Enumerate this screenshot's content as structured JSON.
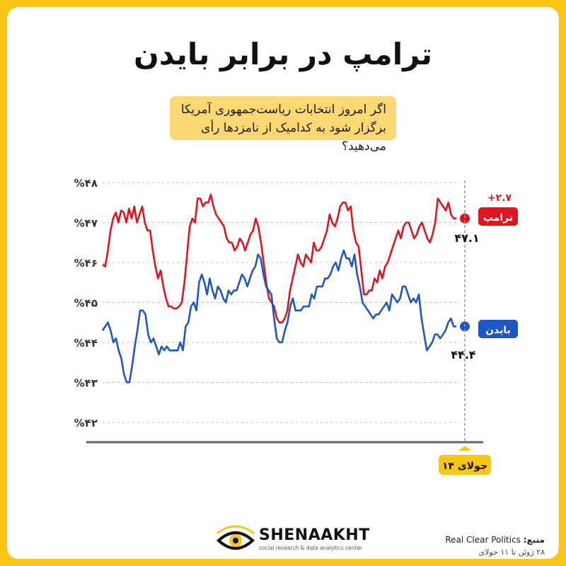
{
  "title": "ترامپ در برابر بایدن",
  "question": "اگر امروز انتخابات ریاست‌جمهوری آمریکا برگزار شود به کدامیک از نامزدها رأی می‌دهید؟",
  "brand": {
    "name": "SHENAAKHT",
    "tagline": "social research & data analytics center"
  },
  "source": {
    "label": "منبع:",
    "name": "Real Clear Politics",
    "dates": "۲۸ ژوئن تا ۱۱ جولای"
  },
  "colors": {
    "accent": "#fbc515",
    "trump": "#e0141e",
    "biden": "#1e56c4"
  },
  "chart_data": {
    "type": "line",
    "y_ticks": [
      "%۴۸",
      "%۴۷",
      "%۴۶",
      "%۴۵",
      "%۴۴",
      "%۴۳",
      "%۴۲"
    ],
    "ylim": [
      42,
      48
    ],
    "date_label": "۱۴ جولای",
    "series": [
      {
        "name": "ترامپ",
        "final_label": "۴۷.۱",
        "lead_label": "+۲.۷",
        "values": [
          45.95,
          45.9,
          46.3,
          46.8,
          47.1,
          47.25,
          47.0,
          47.3,
          47.25,
          47.0,
          47.35,
          47.1,
          47.4,
          47.0,
          47.2,
          47.4,
          47.0,
          46.8,
          46.8,
          46.3,
          45.9,
          45.6,
          45.8,
          45.4,
          45.1,
          44.9,
          44.9,
          44.85,
          44.85,
          44.9,
          45.0,
          45.5,
          46.2,
          46.9,
          47.1,
          47.0,
          47.6,
          47.6,
          47.4,
          47.5,
          47.5,
          47.7,
          47.4,
          47.2,
          47.1,
          47.0,
          46.9,
          46.6,
          46.5,
          46.5,
          46.3,
          46.4,
          46.6,
          46.5,
          46.3,
          46.5,
          46.7,
          46.8,
          47.1,
          46.9,
          46.5,
          46.0,
          45.5,
          45.1,
          45.0,
          44.9,
          44.6,
          44.5,
          44.5,
          44.6,
          44.8,
          45.3,
          45.6,
          45.9,
          46.2,
          46.0,
          45.9,
          46.2,
          46.1,
          46.0,
          46.5,
          46.3,
          46.3,
          46.4,
          46.6,
          46.8,
          47.2,
          47.0,
          46.9,
          47.1,
          47.4,
          47.5,
          47.5,
          47.3,
          47.4,
          46.8,
          46.5,
          46.4,
          45.8,
          45.2,
          45.2,
          45.3,
          45.3,
          45.6,
          45.5,
          45.8,
          45.6,
          45.9,
          46.0,
          46.2,
          46.4,
          46.6,
          46.8,
          46.6,
          46.9,
          47.0,
          47.0,
          46.8,
          46.6,
          46.7,
          46.9,
          47.0,
          46.8,
          46.6,
          46.5,
          46.7,
          47.0,
          47.6,
          47.5,
          47.4,
          47.3,
          47.5,
          47.2,
          47.1,
          47.1
        ],
        "color": "#e0141e"
      },
      {
        "name": "بایدن",
        "final_label": "۴۴.۴",
        "lead_label": "",
        "values": [
          44.3,
          44.4,
          44.5,
          44.3,
          44.0,
          44.1,
          43.8,
          43.6,
          43.2,
          43.0,
          43.0,
          43.4,
          43.9,
          44.3,
          44.8,
          44.8,
          44.7,
          44.2,
          44.0,
          44.1,
          43.9,
          43.7,
          43.9,
          43.8,
          43.9,
          43.8,
          43.8,
          43.8,
          43.8,
          44.0,
          43.8,
          44.4,
          44.5,
          44.9,
          45.0,
          44.8,
          45.5,
          45.7,
          45.5,
          45.2,
          45.6,
          45.3,
          45.1,
          45.4,
          45.3,
          45.1,
          45.0,
          45.3,
          45.2,
          45.3,
          45.3,
          45.5,
          45.7,
          45.6,
          45.4,
          45.6,
          45.8,
          45.9,
          46.2,
          46.1,
          45.7,
          45.4,
          45.3,
          45.2,
          44.6,
          44.1,
          44.0,
          44.0,
          44.3,
          44.5,
          44.9,
          45.1,
          44.8,
          44.8,
          44.8,
          44.9,
          44.9,
          44.9,
          45.2,
          45.1,
          45.4,
          45.4,
          45.4,
          45.6,
          45.6,
          45.7,
          45.9,
          46.0,
          45.8,
          46.1,
          46.3,
          46.1,
          46.1,
          45.9,
          46.2,
          45.7,
          45.4,
          45.0,
          44.9,
          44.8,
          44.7,
          44.6,
          44.7,
          44.7,
          44.8,
          44.9,
          45.0,
          44.8,
          45.2,
          45.1,
          45.0,
          45.1,
          45.4,
          45.4,
          45.2,
          45.0,
          45.1,
          45.0,
          45.2,
          44.6,
          44.2,
          43.8,
          43.9,
          44.0,
          44.2,
          44.2,
          44.1,
          44.2,
          44.3,
          44.5,
          44.6,
          44.4,
          44.4
        ],
        "color": "#1e56c4"
      }
    ]
  }
}
